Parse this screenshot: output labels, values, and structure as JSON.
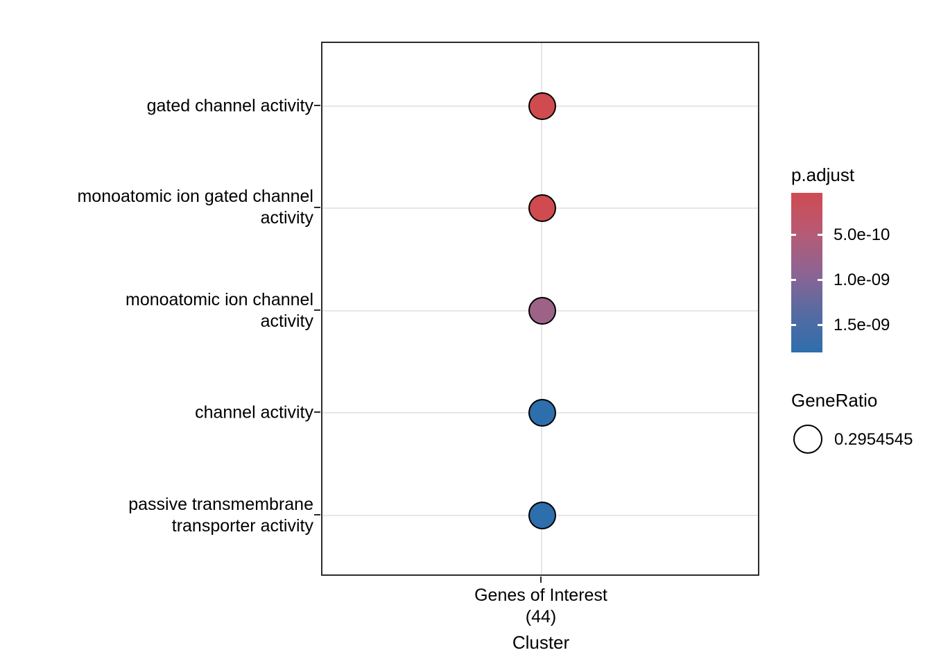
{
  "chart_data": {
    "type": "scatter",
    "subtype": "enrichment-dotplot",
    "title": "",
    "xlabel": "Cluster",
    "ylabel": "",
    "x_categories": [
      "Genes of Interest\n(44)"
    ],
    "x_tick_label": "Genes of Interest\n(44)",
    "categories": [
      "gated channel activity",
      "monoatomic ion gated channel\nactivity",
      "monoatomic ion channel\nactivity",
      "channel activity",
      "passive transmembrane\ntransporter activity"
    ],
    "points": [
      {
        "category": "gated channel activity",
        "x": "Genes of Interest (44)",
        "gene_ratio": 0.2954545,
        "p_adjust_est": 2e-10,
        "color": "#d04b4f"
      },
      {
        "category": "monoatomic ion gated channel activity",
        "x": "Genes of Interest (44)",
        "gene_ratio": 0.2954545,
        "p_adjust_est": 2.5e-10,
        "color": "#d04b4f"
      },
      {
        "category": "monoatomic ion channel activity",
        "x": "Genes of Interest (44)",
        "gene_ratio": 0.2954545,
        "p_adjust_est": 1e-09,
        "color": "#9d6386"
      },
      {
        "category": "channel activity",
        "x": "Genes of Interest (44)",
        "gene_ratio": 0.2954545,
        "p_adjust_est": 1.6e-09,
        "color": "#2d6ead"
      },
      {
        "category": "passive transmembrane transporter activity",
        "x": "Genes of Interest (44)",
        "gene_ratio": 0.2954545,
        "p_adjust_est": 1.6e-09,
        "color": "#2d6ead"
      }
    ],
    "legend_position": "right",
    "grid": true,
    "legend": {
      "p_adjust": {
        "title": "p.adjust",
        "tick_labels": [
          "5.0e-10",
          "1.0e-09",
          "1.5e-09"
        ],
        "gradient_stops": [
          "#cf4b52",
          "#b75a74",
          "#8d6493",
          "#566ba1",
          "#2e6ead"
        ]
      },
      "gene_ratio": {
        "title": "GeneRatio",
        "items": [
          {
            "label": "0.2954545"
          }
        ]
      }
    },
    "colors": {
      "panel_border": "#2b2b2b",
      "gridline": "#e6e6e6",
      "dot_stroke": "#000000",
      "background": "#ffffff"
    }
  }
}
